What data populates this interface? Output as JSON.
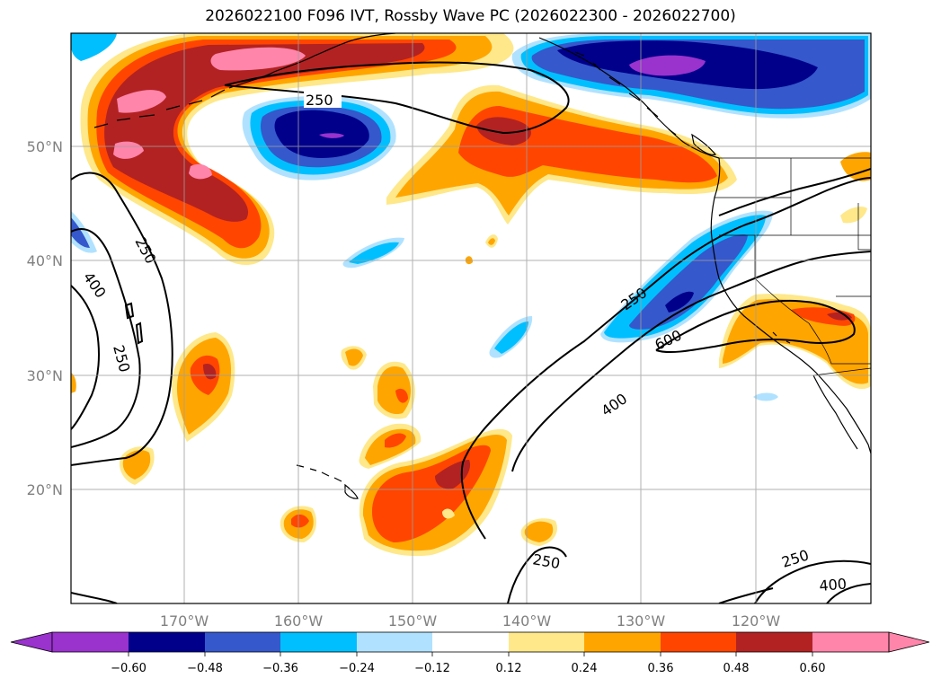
{
  "title": "2026022100 F096 IVT, Rossby Wave PC (2026022300 - 2026022700)",
  "lat_labels": [
    "50°N",
    "40°N",
    "30°N",
    "20°N"
  ],
  "lon_labels": [
    "170°W",
    "160°W",
    "150°W",
    "140°W",
    "130°W",
    "120°W"
  ],
  "contour_labels": [
    "250",
    "250",
    "400",
    "250",
    "250",
    "600",
    "400",
    "250",
    "250",
    "400"
  ],
  "colorbar": {
    "ticks": [
      "−0.60",
      "−0.48",
      "−0.36",
      "−0.24",
      "−0.12",
      "0.12",
      "0.24",
      "0.36",
      "0.48",
      "0.60"
    ],
    "colors": [
      "#9a32cd",
      "#00008b",
      "#3558cc",
      "#00bfff",
      "#b0e2ff",
      "#ffffff",
      "#fee88a",
      "#ffa500",
      "#ff4500",
      "#b22222",
      "#ff85ab",
      "#ff85ab"
    ]
  },
  "palette": {
    "purple": "#9a32cd",
    "navy": "#00008b",
    "blue": "#3558cc",
    "cyan": "#00bfff",
    "lightblue": "#b0e2ff",
    "yellow": "#fee88a",
    "orange": "#ffa500",
    "redorange": "#ff4500",
    "darkred": "#b22222",
    "pink": "#ff85ab"
  }
}
